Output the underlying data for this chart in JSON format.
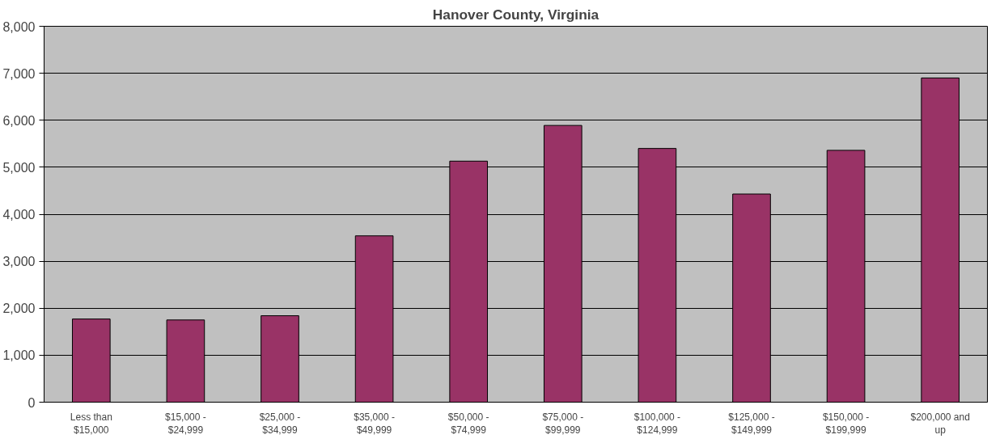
{
  "chart_data": {
    "type": "bar",
    "title": "Hanover County, Virginia",
    "categories": [
      "Less than\n$15,000",
      "$15,000 -\n$24,999",
      "$25,000 -\n$34,999",
      "$35,000 -\n$49,999",
      "$50,000 -\n$74,999",
      "$75,000 -\n$99,999",
      "$100,000 -\n$124,999",
      "$125,000 -\n$149,999",
      "$150,000 -\n$199,999",
      "$200,000 and\nup"
    ],
    "values": [
      1770,
      1750,
      1840,
      3540,
      5130,
      5890,
      5400,
      4430,
      5360,
      6900
    ],
    "color": "#993366",
    "ylim": [
      0,
      8000
    ],
    "yticks": [
      {
        "value": 0,
        "label": "0"
      },
      {
        "value": 1000,
        "label": "1,000"
      },
      {
        "value": 2000,
        "label": "2,000"
      },
      {
        "value": 3000,
        "label": "3,000"
      },
      {
        "value": 4000,
        "label": "4,000"
      },
      {
        "value": 5000,
        "label": "5,000"
      },
      {
        "value": 6000,
        "label": "6,000"
      },
      {
        "value": 7000,
        "label": "7,000"
      },
      {
        "value": 8000,
        "label": "8,000"
      }
    ],
    "grid": "y"
  }
}
